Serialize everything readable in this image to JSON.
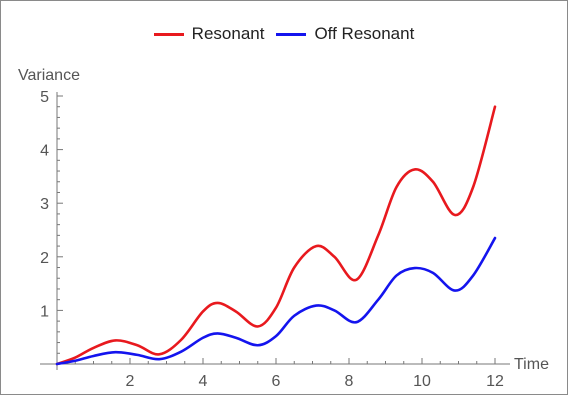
{
  "chart_data": {
    "type": "line",
    "title": "",
    "xlabel": "Time",
    "ylabel": "Variance",
    "xlim": [
      0,
      12
    ],
    "ylim": [
      0,
      5
    ],
    "xticks": [
      2,
      4,
      6,
      8,
      10,
      12
    ],
    "yticks": [
      1,
      2,
      3,
      4,
      5
    ],
    "legend_position": "top-center",
    "grid": false,
    "series": [
      {
        "name": "Resonant",
        "color": "#e8191e",
        "x": [
          0,
          0.5,
          1,
          1.6,
          2.2,
          2.8,
          3.4,
          4.0,
          4.4,
          4.9,
          5.5,
          6.0,
          6.5,
          7.1,
          7.6,
          8.2,
          8.8,
          9.3,
          9.8,
          10.3,
          10.9,
          11.4,
          12
        ],
        "y": [
          0,
          0.12,
          0.3,
          0.44,
          0.35,
          0.18,
          0.45,
          0.98,
          1.14,
          0.98,
          0.7,
          1.05,
          1.8,
          2.2,
          2.0,
          1.57,
          2.4,
          3.3,
          3.63,
          3.4,
          2.78,
          3.3,
          4.8
        ]
      },
      {
        "name": "Off Resonant",
        "color": "#1414ee",
        "x": [
          0,
          0.5,
          1,
          1.6,
          2.2,
          2.8,
          3.4,
          4.0,
          4.4,
          4.9,
          5.5,
          6.0,
          6.5,
          7.1,
          7.6,
          8.2,
          8.8,
          9.3,
          9.8,
          10.3,
          10.9,
          11.4,
          12
        ],
        "y": [
          0,
          0.06,
          0.15,
          0.22,
          0.17,
          0.09,
          0.23,
          0.49,
          0.57,
          0.49,
          0.35,
          0.52,
          0.9,
          1.09,
          1.0,
          0.78,
          1.2,
          1.65,
          1.79,
          1.7,
          1.37,
          1.65,
          2.35
        ]
      }
    ]
  }
}
